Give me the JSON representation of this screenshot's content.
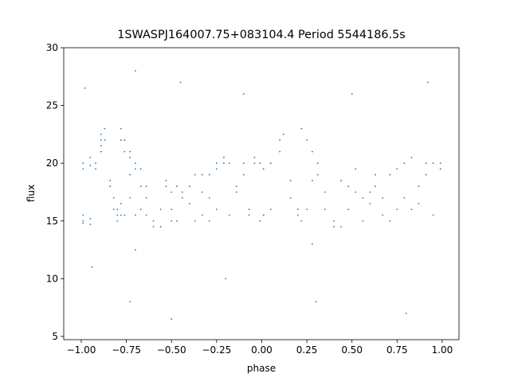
{
  "chart_data": {
    "type": "scatter",
    "title": "1SWASPJ164007.75+083104.4 Period 5544186.5s",
    "x_label": "phase",
    "y_label": "flux",
    "color": "#1f77b4",
    "xlim": [
      -1.097,
      1.093
    ],
    "ylim": [
      4.72,
      30.0
    ],
    "xticks": [
      {
        "value": -1,
        "label": "−1.00"
      },
      {
        "value": -0.75,
        "label": "−0.75"
      },
      {
        "value": -0.5,
        "label": "−0.50"
      },
      {
        "value": -0.25,
        "label": "−0.25"
      },
      {
        "value": 0,
        "label": "0.00"
      },
      {
        "value": 0.25,
        "label": "0.25"
      },
      {
        "value": 0.5,
        "label": "0.50"
      },
      {
        "value": 0.75,
        "label": "0.75"
      },
      {
        "value": 1,
        "label": "1.00"
      }
    ],
    "yticks": [
      5,
      10,
      15,
      20,
      25,
      30
    ],
    "x": [
      -0.99,
      -0.99,
      -0.99,
      -0.99,
      -0.99,
      -0.95,
      -0.95,
      -0.95,
      -0.95,
      -0.92,
      -0.92,
      -0.89,
      -0.89,
      -0.89,
      -0.89,
      -0.87,
      -0.87,
      -0.84,
      -0.84,
      -0.82,
      -0.82,
      -0.8,
      -0.8,
      -0.8,
      -0.78,
      -0.78,
      -0.78,
      -0.78,
      -0.76,
      -0.76,
      -0.76,
      -0.73,
      -0.73,
      -0.73,
      -0.73,
      -0.7,
      -0.7,
      -0.7,
      -0.7,
      -0.67,
      -0.67,
      -0.67,
      -0.64,
      -0.64,
      -0.64,
      -0.6,
      -0.6,
      -0.56,
      -0.56,
      -0.53,
      -0.53,
      -0.5,
      -0.5,
      -0.5,
      -0.47,
      -0.47,
      -0.44,
      -0.44,
      -0.4,
      -0.4,
      -0.37,
      -0.37,
      -0.33,
      -0.33,
      -0.33,
      -0.29,
      -0.29,
      -0.29,
      -0.25,
      -0.25,
      -0.25,
      -0.21,
      -0.21,
      -0.18,
      -0.18,
      -0.14,
      -0.14,
      -0.1,
      -0.1,
      -0.07,
      -0.07,
      -0.04,
      -0.04,
      -0.01,
      -0.01,
      -0.98,
      -0.94,
      -0.73,
      -0.7,
      -0.5,
      -0.45,
      -0.2,
      -0.1,
      0.01,
      0.01,
      0.05,
      0.05,
      0.1,
      0.1,
      0.12,
      0.16,
      0.16,
      0.2,
      0.2,
      0.22,
      0.22,
      0.25,
      0.25,
      0.28,
      0.28,
      0.28,
      0.31,
      0.31,
      0.35,
      0.35,
      0.4,
      0.4,
      0.44,
      0.44,
      0.48,
      0.48,
      0.52,
      0.52,
      0.56,
      0.56,
      0.6,
      0.6,
      0.63,
      0.63,
      0.67,
      0.67,
      0.71,
      0.71,
      0.75,
      0.75,
      0.79,
      0.79,
      0.83,
      0.83,
      0.87,
      0.87,
      0.91,
      0.91,
      0.95,
      0.95,
      0.99,
      0.99,
      0.3,
      0.5,
      0.8,
      0.92
    ],
    "values": [
      15,
      15.5,
      14.8,
      20,
      19.5,
      15.2,
      14.7,
      20.5,
      19.8,
      19.5,
      20,
      21.5,
      22,
      22.5,
      21,
      22,
      23,
      18.5,
      18,
      17,
      16,
      15.5,
      16,
      15,
      23,
      22,
      16.5,
      15.5,
      22,
      21,
      15.5,
      21,
      20.5,
      19,
      17,
      20,
      19.5,
      15.5,
      12.5,
      19.5,
      18,
      16,
      17,
      18,
      15.5,
      14.5,
      15,
      14.5,
      16,
      18.5,
      18,
      16,
      17.5,
      15,
      15,
      18,
      17.5,
      17,
      16.5,
      18,
      15,
      19,
      19,
      17.5,
      15.5,
      19,
      17,
      15,
      16,
      19.5,
      20,
      20,
      20.5,
      20,
      15.5,
      17.5,
      18,
      20,
      19,
      15.5,
      16,
      20,
      20.5,
      20,
      15,
      26.5,
      11,
      8,
      28,
      6.5,
      27,
      10,
      26,
      15.5,
      19.5,
      20,
      16,
      22,
      21,
      22.5,
      18.5,
      17,
      16,
      15.5,
      23,
      15,
      22,
      16,
      21,
      18.5,
      13,
      20,
      19,
      17.5,
      16,
      14.5,
      15,
      14.5,
      18.5,
      18,
      16,
      17.5,
      19.5,
      17,
      15,
      17.5,
      16.5,
      18,
      19,
      17,
      15.5,
      19,
      15,
      16,
      19.5,
      20,
      17,
      20.5,
      16,
      18,
      16.5,
      19,
      20,
      15.5,
      20,
      20,
      19.5,
      8,
      26,
      7,
      27
    ]
  }
}
